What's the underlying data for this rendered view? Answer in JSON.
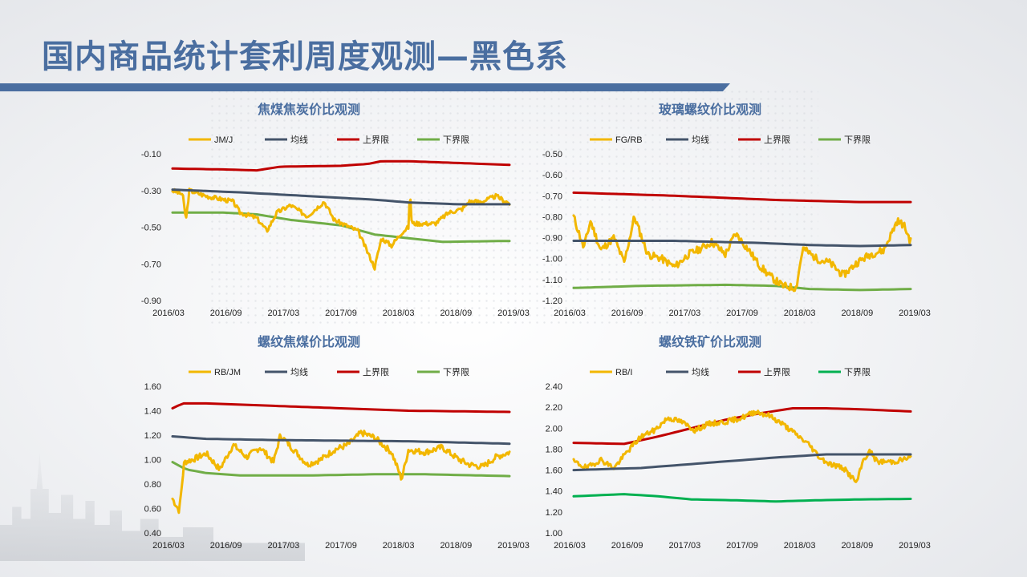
{
  "page": {
    "title": "国内商品统计套利周度观测—黑色系"
  },
  "colors": {
    "ratio": "#f2b700",
    "mean": "#44546a",
    "upper": "#c00000",
    "lower": "#70ad47",
    "lower_alt": "#00b050",
    "title": "#4a6ea0"
  },
  "chart_data": [
    {
      "type": "line",
      "title": "焦煤焦炭价比观测",
      "ylim": [
        -0.9,
        -0.1
      ],
      "yticks": [
        "-0.10",
        "-0.30",
        "-0.50",
        "-0.70",
        "-0.90"
      ],
      "ytick_values": [
        -0.1,
        -0.3,
        -0.5,
        -0.7,
        -0.9
      ],
      "xticks": [
        "2016/03",
        "2016/09",
        "2017/03",
        "2017/09",
        "2018/03",
        "2018/09",
        "2019/03"
      ],
      "legend": [
        "JM/J",
        "均线",
        "上界限",
        "下界限"
      ],
      "series": [
        {
          "name": "JM/J",
          "anchors": [
            [
              0,
              -0.3
            ],
            [
              0.03,
              -0.32
            ],
            [
              0.04,
              -0.46
            ],
            [
              0.05,
              -0.3
            ],
            [
              0.1,
              -0.33
            ],
            [
              0.18,
              -0.36
            ],
            [
              0.2,
              -0.42
            ],
            [
              0.25,
              -0.45
            ],
            [
              0.28,
              -0.52
            ],
            [
              0.31,
              -0.42
            ],
            [
              0.35,
              -0.38
            ],
            [
              0.4,
              -0.44
            ],
            [
              0.45,
              -0.36
            ],
            [
              0.48,
              -0.46
            ],
            [
              0.55,
              -0.52
            ],
            [
              0.58,
              -0.64
            ],
            [
              0.6,
              -0.72
            ],
            [
              0.62,
              -0.56
            ],
            [
              0.65,
              -0.6
            ],
            [
              0.68,
              -0.53
            ],
            [
              0.7,
              -0.5
            ],
            [
              0.705,
              -0.3
            ],
            [
              0.71,
              -0.48
            ],
            [
              0.78,
              -0.48
            ],
            [
              0.82,
              -0.42
            ],
            [
              0.86,
              -0.4
            ],
            [
              0.88,
              -0.36
            ],
            [
              0.92,
              -0.36
            ],
            [
              0.96,
              -0.33
            ],
            [
              1.0,
              -0.37
            ]
          ],
          "noise": 0.012,
          "seed": 3
        },
        {
          "name": "均线",
          "anchors": [
            [
              0,
              -0.295
            ],
            [
              0.2,
              -0.31
            ],
            [
              0.4,
              -0.33
            ],
            [
              0.6,
              -0.35
            ],
            [
              0.7,
              -0.365
            ],
            [
              0.85,
              -0.375
            ],
            [
              1.0,
              -0.375
            ]
          ]
        },
        {
          "name": "上界限",
          "anchors": [
            [
              0,
              -0.18
            ],
            [
              0.15,
              -0.185
            ],
            [
              0.25,
              -0.19
            ],
            [
              0.32,
              -0.17
            ],
            [
              0.5,
              -0.165
            ],
            [
              0.58,
              -0.155
            ],
            [
              0.62,
              -0.14
            ],
            [
              0.7,
              -0.14
            ],
            [
              0.85,
              -0.15
            ],
            [
              1.0,
              -0.16
            ]
          ]
        },
        {
          "name": "下界限",
          "anchors": [
            [
              0,
              -0.42
            ],
            [
              0.15,
              -0.42
            ],
            [
              0.25,
              -0.43
            ],
            [
              0.35,
              -0.46
            ],
            [
              0.5,
              -0.49
            ],
            [
              0.6,
              -0.54
            ],
            [
              0.7,
              -0.56
            ],
            [
              0.8,
              -0.58
            ],
            [
              1.0,
              -0.575
            ]
          ]
        }
      ]
    },
    {
      "type": "line",
      "title": "玻璃螺纹价比观测",
      "ylim": [
        -1.2,
        -0.5
      ],
      "yticks": [
        "-0.50",
        "-0.60",
        "-0.70",
        "-0.80",
        "-0.90",
        "-1.00",
        "-1.10",
        "-1.20"
      ],
      "ytick_values": [
        -0.5,
        -0.6,
        -0.7,
        -0.8,
        -0.9,
        -1.0,
        -1.1,
        -1.2
      ],
      "xticks": [
        "2016/03",
        "2016/09",
        "2017/03",
        "2017/09",
        "2018/03",
        "2018/09",
        "2019/03"
      ],
      "legend": [
        "FG/RB",
        "均线",
        "上界限",
        "下界限"
      ],
      "series": [
        {
          "name": "FG/RB",
          "anchors": [
            [
              0,
              -0.8
            ],
            [
              0.03,
              -0.95
            ],
            [
              0.05,
              -0.82
            ],
            [
              0.08,
              -0.96
            ],
            [
              0.12,
              -0.9
            ],
            [
              0.15,
              -1.02
            ],
            [
              0.18,
              -0.8
            ],
            [
              0.22,
              -0.98
            ],
            [
              0.26,
              -1.0
            ],
            [
              0.3,
              -1.04
            ],
            [
              0.34,
              -0.98
            ],
            [
              0.38,
              -0.95
            ],
            [
              0.41,
              -0.92
            ],
            [
              0.45,
              -0.98
            ],
            [
              0.48,
              -0.88
            ],
            [
              0.52,
              -0.96
            ],
            [
              0.55,
              -1.03
            ],
            [
              0.58,
              -1.08
            ],
            [
              0.62,
              -1.13
            ],
            [
              0.66,
              -1.14
            ],
            [
              0.68,
              -0.95
            ],
            [
              0.72,
              -1.0
            ],
            [
              0.76,
              -1.02
            ],
            [
              0.8,
              -1.08
            ],
            [
              0.84,
              -1.02
            ],
            [
              0.88,
              -0.98
            ],
            [
              0.92,
              -0.96
            ],
            [
              0.96,
              -0.82
            ],
            [
              0.98,
              -0.84
            ],
            [
              1.0,
              -0.92
            ]
          ],
          "noise": 0.018,
          "seed": 11
        },
        {
          "name": "均线",
          "anchors": [
            [
              0,
              -0.915
            ],
            [
              0.3,
              -0.915
            ],
            [
              0.55,
              -0.925
            ],
            [
              0.7,
              -0.935
            ],
            [
              0.85,
              -0.94
            ],
            [
              1.0,
              -0.935
            ]
          ]
        },
        {
          "name": "上界限",
          "anchors": [
            [
              0,
              -0.685
            ],
            [
              0.3,
              -0.7
            ],
            [
              0.6,
              -0.72
            ],
            [
              0.85,
              -0.73
            ],
            [
              1.0,
              -0.73
            ]
          ]
        },
        {
          "name": "下界限",
          "anchors": [
            [
              0,
              -1.14
            ],
            [
              0.2,
              -1.13
            ],
            [
              0.45,
              -1.125
            ],
            [
              0.6,
              -1.13
            ],
            [
              0.7,
              -1.145
            ],
            [
              0.85,
              -1.15
            ],
            [
              1.0,
              -1.145
            ]
          ]
        }
      ]
    },
    {
      "type": "line",
      "title": "螺纹焦煤价比观测",
      "ylim": [
        0.4,
        1.6
      ],
      "yticks": [
        "1.60",
        "1.40",
        "1.20",
        "1.00",
        "0.80",
        "0.60",
        "0.40"
      ],
      "ytick_values": [
        1.6,
        1.4,
        1.2,
        1.0,
        0.8,
        0.6,
        0.4
      ],
      "xticks": [
        "2016/03",
        "2016/09",
        "2017/03",
        "2017/09",
        "2018/03",
        "2018/09",
        "2019/03"
      ],
      "legend": [
        "RB/JM",
        "均线",
        "上界限",
        "下界限"
      ],
      "series": [
        {
          "name": "RB/JM",
          "anchors": [
            [
              0,
              0.68
            ],
            [
              0.02,
              0.58
            ],
            [
              0.035,
              0.98
            ],
            [
              0.06,
              1.0
            ],
            [
              0.1,
              1.05
            ],
            [
              0.14,
              0.92
            ],
            [
              0.18,
              1.12
            ],
            [
              0.22,
              1.02
            ],
            [
              0.26,
              1.1
            ],
            [
              0.3,
              0.98
            ],
            [
              0.32,
              1.2
            ],
            [
              0.36,
              1.08
            ],
            [
              0.4,
              0.96
            ],
            [
              0.44,
              1.0
            ],
            [
              0.48,
              1.08
            ],
            [
              0.52,
              1.12
            ],
            [
              0.56,
              1.22
            ],
            [
              0.6,
              1.18
            ],
            [
              0.65,
              1.06
            ],
            [
              0.68,
              0.84
            ],
            [
              0.7,
              1.08
            ],
            [
              0.75,
              1.06
            ],
            [
              0.8,
              1.1
            ],
            [
              0.85,
              1.0
            ],
            [
              0.88,
              0.96
            ],
            [
              0.92,
              0.94
            ],
            [
              0.96,
              1.02
            ],
            [
              1.0,
              1.06
            ]
          ],
          "noise": 0.025,
          "seed": 7
        },
        {
          "name": "均线",
          "anchors": [
            [
              0,
              1.19
            ],
            [
              0.1,
              1.17
            ],
            [
              0.3,
              1.16
            ],
            [
              0.5,
              1.155
            ],
            [
              0.7,
              1.15
            ],
            [
              0.85,
              1.14
            ],
            [
              1.0,
              1.13
            ]
          ]
        },
        {
          "name": "上界限",
          "anchors": [
            [
              0,
              1.42
            ],
            [
              0.03,
              1.46
            ],
            [
              0.1,
              1.46
            ],
            [
              0.3,
              1.44
            ],
            [
              0.5,
              1.42
            ],
            [
              0.7,
              1.4
            ],
            [
              1.0,
              1.39
            ]
          ]
        },
        {
          "name": "下界限",
          "anchors": [
            [
              0,
              0.98
            ],
            [
              0.04,
              0.92
            ],
            [
              0.1,
              0.89
            ],
            [
              0.2,
              0.87
            ],
            [
              0.4,
              0.87
            ],
            [
              0.6,
              0.88
            ],
            [
              0.75,
              0.88
            ],
            [
              1.0,
              0.865
            ]
          ]
        }
      ]
    },
    {
      "type": "line",
      "title": "螺纹铁矿价比观测",
      "ylim": [
        1.0,
        2.4
      ],
      "yticks": [
        "2.40",
        "2.20",
        "2.00",
        "1.80",
        "1.60",
        "1.40",
        "1.20",
        "1.00"
      ],
      "ytick_values": [
        2.4,
        2.2,
        2.0,
        1.8,
        1.6,
        1.4,
        1.2,
        1.0
      ],
      "xticks": [
        "2016/03",
        "2016/09",
        "2017/03",
        "2017/09",
        "2018/03",
        "2018/09",
        "2019/03"
      ],
      "legend": [
        "RB/I",
        "均线",
        "上界限",
        "下界限"
      ],
      "series": [
        {
          "name": "RB/I",
          "anchors": [
            [
              0,
              1.68
            ],
            [
              0.04,
              1.62
            ],
            [
              0.08,
              1.7
            ],
            [
              0.12,
              1.62
            ],
            [
              0.16,
              1.78
            ],
            [
              0.2,
              1.92
            ],
            [
              0.24,
              1.98
            ],
            [
              0.28,
              2.1
            ],
            [
              0.32,
              2.06
            ],
            [
              0.36,
              1.98
            ],
            [
              0.4,
              2.04
            ],
            [
              0.45,
              2.06
            ],
            [
              0.5,
              2.1
            ],
            [
              0.54,
              2.16
            ],
            [
              0.58,
              2.12
            ],
            [
              0.62,
              2.04
            ],
            [
              0.66,
              1.94
            ],
            [
              0.7,
              1.84
            ],
            [
              0.73,
              1.72
            ],
            [
              0.76,
              1.66
            ],
            [
              0.8,
              1.62
            ],
            [
              0.84,
              1.48
            ],
            [
              0.86,
              1.7
            ],
            [
              0.88,
              1.78
            ],
            [
              0.9,
              1.68
            ],
            [
              0.95,
              1.68
            ],
            [
              1.0,
              1.72
            ]
          ],
          "noise": 0.025,
          "seed": 19
        },
        {
          "name": "均线",
          "anchors": [
            [
              0,
              1.6
            ],
            [
              0.2,
              1.62
            ],
            [
              0.4,
              1.67
            ],
            [
              0.6,
              1.72
            ],
            [
              0.75,
              1.75
            ],
            [
              1.0,
              1.75
            ]
          ]
        },
        {
          "name": "上界限",
          "anchors": [
            [
              0,
              1.86
            ],
            [
              0.15,
              1.85
            ],
            [
              0.25,
              1.92
            ],
            [
              0.35,
              2.0
            ],
            [
              0.45,
              2.08
            ],
            [
              0.55,
              2.14
            ],
            [
              0.65,
              2.19
            ],
            [
              0.75,
              2.19
            ],
            [
              0.85,
              2.18
            ],
            [
              1.0,
              2.16
            ]
          ]
        },
        {
          "name": "下界限",
          "anchors": [
            [
              0,
              1.35
            ],
            [
              0.15,
              1.37
            ],
            [
              0.25,
              1.35
            ],
            [
              0.35,
              1.32
            ],
            [
              0.5,
              1.31
            ],
            [
              0.6,
              1.3
            ],
            [
              0.7,
              1.31
            ],
            [
              0.85,
              1.32
            ],
            [
              1.0,
              1.325
            ]
          ]
        }
      ]
    }
  ]
}
